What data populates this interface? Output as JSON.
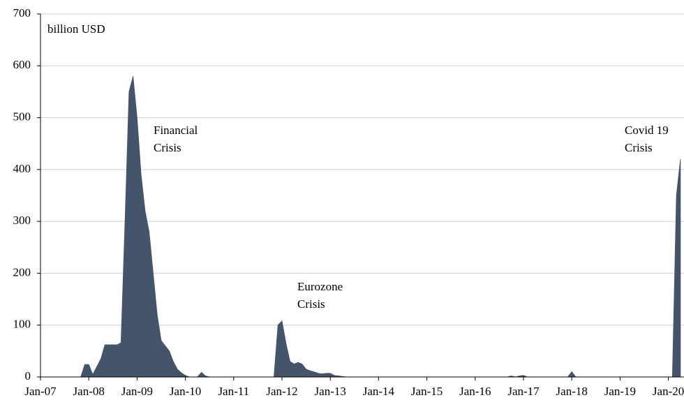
{
  "chart_data": {
    "type": "area",
    "annotations": [
      {
        "lines": [
          "billion USD"
        ]
      },
      {
        "lines": [
          "Financial",
          "Crisis"
        ]
      },
      {
        "lines": [
          "Eurozone",
          "Crisis"
        ]
      },
      {
        "lines": [
          "Covid 19",
          "Crisis"
        ]
      }
    ],
    "categories": [
      "Jan-07",
      null,
      null,
      null,
      null,
      null,
      null,
      null,
      null,
      null,
      null,
      null,
      "Jan-08",
      null,
      null,
      null,
      null,
      null,
      null,
      null,
      null,
      null,
      null,
      null,
      "Jan-09",
      null,
      null,
      null,
      null,
      null,
      null,
      null,
      null,
      null,
      null,
      null,
      "Jan-10",
      null,
      null,
      null,
      null,
      null,
      null,
      null,
      null,
      null,
      null,
      null,
      "Jan-11",
      null,
      null,
      null,
      null,
      null,
      null,
      null,
      null,
      null,
      null,
      null,
      "Jan-12",
      null,
      null,
      null,
      null,
      null,
      null,
      null,
      null,
      null,
      null,
      null,
      "Jan-13",
      null,
      null,
      null,
      null,
      null,
      null,
      null,
      null,
      null,
      null,
      null,
      "Jan-14",
      null,
      null,
      null,
      null,
      null,
      null,
      null,
      null,
      null,
      null,
      null,
      "Jan-15",
      null,
      null,
      null,
      null,
      null,
      null,
      null,
      null,
      null,
      null,
      null,
      "Jan-16",
      null,
      null,
      null,
      null,
      null,
      null,
      null,
      null,
      null,
      null,
      null,
      "Jan-17",
      null,
      null,
      null,
      null,
      null,
      null,
      null,
      null,
      null,
      null,
      null,
      "Jan-18",
      null,
      null,
      null,
      null,
      null,
      null,
      null,
      null,
      null,
      null,
      null,
      "Jan-19",
      null,
      null,
      null,
      null,
      null,
      null,
      null,
      null,
      null,
      null,
      null,
      "Jan-20",
      null,
      null,
      null
    ],
    "series": [
      {
        "color": "#44546a",
        "values": [
          0,
          0,
          0,
          0,
          0,
          0,
          0,
          0,
          0,
          0,
          0,
          24,
          24,
          5,
          20,
          35,
          62,
          62,
          62,
          62,
          66,
          300,
          550,
          580,
          500,
          390,
          320,
          280,
          200,
          120,
          70,
          60,
          50,
          30,
          15,
          8,
          3,
          0,
          0,
          0,
          9,
          2,
          0,
          0,
          0,
          0,
          0,
          0,
          0,
          0,
          0,
          0,
          0,
          0,
          0,
          0,
          0,
          0,
          0,
          100,
          108,
          65,
          30,
          25,
          28,
          25,
          15,
          12,
          10,
          7,
          6,
          7,
          7,
          3,
          2,
          1,
          0,
          0,
          0,
          0,
          0,
          0,
          0,
          0,
          0,
          0,
          0,
          0,
          0,
          0,
          0,
          0,
          0,
          0,
          0,
          0,
          0,
          0,
          0,
          0,
          0,
          0,
          0,
          0,
          0,
          0,
          0,
          0,
          0,
          0,
          0,
          0,
          0,
          0,
          0,
          0,
          0,
          2,
          0,
          2,
          3,
          0,
          0,
          0,
          0,
          0,
          0,
          0,
          0,
          0,
          0,
          0,
          10,
          0,
          0,
          0,
          0,
          0,
          0,
          0,
          0,
          0,
          0,
          0,
          0,
          0,
          0,
          0,
          0,
          0,
          0,
          0,
          0,
          0,
          0,
          0,
          0,
          0,
          350,
          420
        ]
      }
    ],
    "ylim": [
      0,
      700
    ],
    "yticks": [
      0,
      100,
      200,
      300,
      400,
      500,
      600,
      700
    ],
    "grid": true
  }
}
